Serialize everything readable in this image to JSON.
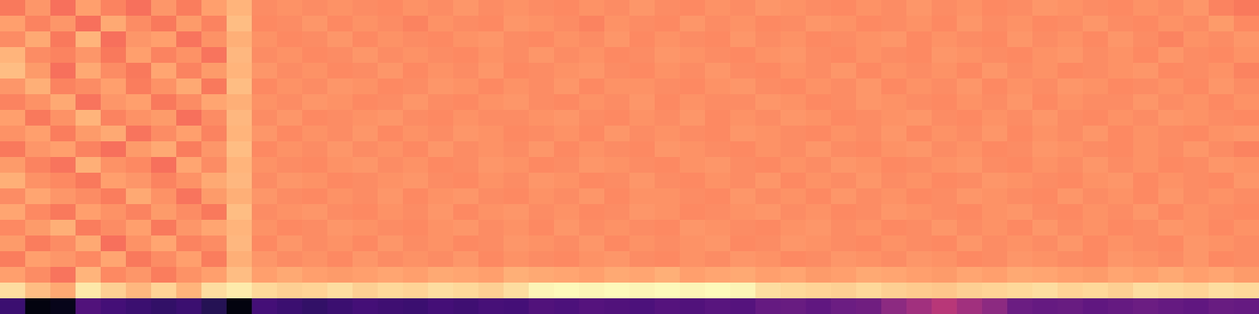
{
  "chart_data": {
    "type": "heatmap",
    "tick_labels": false,
    "zlim": [
      0,
      1
    ],
    "cells": [
      [
        0.72,
        0.78,
        0.7,
        0.8,
        0.74,
        0.7,
        0.78,
        0.73,
        0.8,
        0.84,
        0.76,
        0.77,
        0.76,
        0.77,
        0.76,
        0.75,
        0.77,
        0.76,
        0.78,
        0.76,
        0.77,
        0.76,
        0.75,
        0.77,
        0.76,
        0.78,
        0.76,
        0.75,
        0.77,
        0.76,
        0.78,
        0.77,
        0.76,
        0.75,
        0.77,
        0.76,
        0.78,
        0.76,
        0.77,
        0.75,
        0.76,
        0.78,
        0.77,
        0.76,
        0.75,
        0.77,
        0.76,
        0.78,
        0.74,
        0.72
      ],
      [
        0.8,
        0.74,
        0.78,
        0.7,
        0.82,
        0.76,
        0.72,
        0.79,
        0.74,
        0.86,
        0.75,
        0.76,
        0.78,
        0.75,
        0.77,
        0.76,
        0.74,
        0.77,
        0.76,
        0.75,
        0.78,
        0.77,
        0.76,
        0.74,
        0.77,
        0.76,
        0.75,
        0.78,
        0.76,
        0.77,
        0.75,
        0.76,
        0.78,
        0.77,
        0.75,
        0.76,
        0.77,
        0.75,
        0.78,
        0.76,
        0.77,
        0.75,
        0.76,
        0.78,
        0.76,
        0.75,
        0.77,
        0.76,
        0.79,
        0.75
      ],
      [
        0.76,
        0.82,
        0.72,
        0.84,
        0.7,
        0.78,
        0.8,
        0.71,
        0.77,
        0.83,
        0.77,
        0.75,
        0.76,
        0.78,
        0.75,
        0.77,
        0.76,
        0.75,
        0.77,
        0.78,
        0.76,
        0.75,
        0.77,
        0.76,
        0.78,
        0.75,
        0.77,
        0.76,
        0.75,
        0.78,
        0.76,
        0.77,
        0.75,
        0.76,
        0.77,
        0.78,
        0.75,
        0.77,
        0.76,
        0.75,
        0.78,
        0.76,
        0.77,
        0.75,
        0.78,
        0.76,
        0.74,
        0.77,
        0.76,
        0.78
      ],
      [
        0.84,
        0.76,
        0.74,
        0.78,
        0.72,
        0.8,
        0.74,
        0.77,
        0.71,
        0.85,
        0.76,
        0.77,
        0.75,
        0.76,
        0.78,
        0.76,
        0.77,
        0.76,
        0.75,
        0.77,
        0.76,
        0.78,
        0.76,
        0.77,
        0.75,
        0.76,
        0.78,
        0.77,
        0.76,
        0.75,
        0.77,
        0.78,
        0.76,
        0.75,
        0.77,
        0.76,
        0.75,
        0.78,
        0.77,
        0.76,
        0.75,
        0.77,
        0.78,
        0.76,
        0.77,
        0.75,
        0.78,
        0.76,
        0.75,
        0.77
      ],
      [
        0.86,
        0.79,
        0.7,
        0.82,
        0.76,
        0.72,
        0.81,
        0.74,
        0.79,
        0.84,
        0.78,
        0.76,
        0.77,
        0.75,
        0.76,
        0.78,
        0.75,
        0.77,
        0.76,
        0.78,
        0.75,
        0.76,
        0.77,
        0.78,
        0.76,
        0.75,
        0.77,
        0.76,
        0.78,
        0.76,
        0.75,
        0.77,
        0.76,
        0.78,
        0.75,
        0.77,
        0.76,
        0.77,
        0.75,
        0.78,
        0.76,
        0.77,
        0.75,
        0.76,
        0.77,
        0.78,
        0.75,
        0.76,
        0.77,
        0.74
      ],
      [
        0.78,
        0.83,
        0.74,
        0.76,
        0.8,
        0.73,
        0.77,
        0.82,
        0.72,
        0.86,
        0.75,
        0.77,
        0.76,
        0.78,
        0.77,
        0.75,
        0.76,
        0.78,
        0.77,
        0.75,
        0.77,
        0.76,
        0.78,
        0.75,
        0.77,
        0.77,
        0.76,
        0.75,
        0.77,
        0.78,
        0.76,
        0.75,
        0.77,
        0.76,
        0.78,
        0.75,
        0.77,
        0.76,
        0.78,
        0.75,
        0.77,
        0.76,
        0.78,
        0.77,
        0.75,
        0.76,
        0.77,
        0.75,
        0.78,
        0.76
      ],
      [
        0.74,
        0.77,
        0.82,
        0.71,
        0.78,
        0.8,
        0.72,
        0.76,
        0.81,
        0.83,
        0.77,
        0.76,
        0.78,
        0.77,
        0.75,
        0.76,
        0.78,
        0.76,
        0.75,
        0.77,
        0.78,
        0.76,
        0.75,
        0.77,
        0.76,
        0.78,
        0.75,
        0.77,
        0.76,
        0.76,
        0.78,
        0.77,
        0.75,
        0.76,
        0.78,
        0.77,
        0.76,
        0.75,
        0.77,
        0.76,
        0.78,
        0.75,
        0.77,
        0.76,
        0.76,
        0.78,
        0.76,
        0.77,
        0.75,
        0.77
      ],
      [
        0.8,
        0.72,
        0.77,
        0.84,
        0.74,
        0.77,
        0.79,
        0.7,
        0.76,
        0.85,
        0.76,
        0.78,
        0.75,
        0.76,
        0.77,
        0.78,
        0.76,
        0.75,
        0.77,
        0.76,
        0.76,
        0.77,
        0.78,
        0.76,
        0.75,
        0.77,
        0.76,
        0.78,
        0.75,
        0.77,
        0.76,
        0.78,
        0.77,
        0.75,
        0.76,
        0.77,
        0.78,
        0.76,
        0.75,
        0.77,
        0.76,
        0.78,
        0.76,
        0.75,
        0.77,
        0.76,
        0.78,
        0.77,
        0.76,
        0.75
      ],
      [
        0.77,
        0.8,
        0.73,
        0.79,
        0.82,
        0.71,
        0.76,
        0.8,
        0.74,
        0.84,
        0.78,
        0.75,
        0.77,
        0.76,
        0.78,
        0.75,
        0.77,
        0.76,
        0.78,
        0.77,
        0.75,
        0.76,
        0.77,
        0.75,
        0.78,
        0.76,
        0.77,
        0.76,
        0.75,
        0.78,
        0.77,
        0.76,
        0.75,
        0.77,
        0.76,
        0.78,
        0.75,
        0.77,
        0.76,
        0.78,
        0.75,
        0.77,
        0.76,
        0.78,
        0.75,
        0.77,
        0.76,
        0.75,
        0.77,
        0.78
      ],
      [
        0.72,
        0.78,
        0.8,
        0.74,
        0.7,
        0.79,
        0.82,
        0.73,
        0.78,
        0.86,
        0.75,
        0.77,
        0.76,
        0.78,
        0.76,
        0.77,
        0.75,
        0.78,
        0.76,
        0.77,
        0.76,
        0.78,
        0.75,
        0.77,
        0.76,
        0.75,
        0.78,
        0.77,
        0.76,
        0.75,
        0.77,
        0.76,
        0.78,
        0.76,
        0.75,
        0.77,
        0.78,
        0.76,
        0.77,
        0.75,
        0.76,
        0.78,
        0.77,
        0.76,
        0.75,
        0.77,
        0.76,
        0.78,
        0.76,
        0.74
      ],
      [
        0.79,
        0.74,
        0.71,
        0.83,
        0.77,
        0.75,
        0.7,
        0.81,
        0.76,
        0.84,
        0.77,
        0.76,
        0.75,
        0.77,
        0.78,
        0.76,
        0.77,
        0.75,
        0.76,
        0.78,
        0.77,
        0.75,
        0.76,
        0.78,
        0.77,
        0.76,
        0.75,
        0.77,
        0.78,
        0.76,
        0.75,
        0.77,
        0.76,
        0.78,
        0.77,
        0.75,
        0.76,
        0.77,
        0.78,
        0.76,
        0.75,
        0.77,
        0.76,
        0.78,
        0.76,
        0.77,
        0.75,
        0.76,
        0.78,
        0.77
      ],
      [
        0.83,
        0.77,
        0.75,
        0.72,
        0.8,
        0.78,
        0.74,
        0.77,
        0.82,
        0.85,
        0.76,
        0.78,
        0.77,
        0.75,
        0.76,
        0.77,
        0.78,
        0.76,
        0.75,
        0.77,
        0.76,
        0.78,
        0.77,
        0.75,
        0.76,
        0.78,
        0.76,
        0.75,
        0.77,
        0.76,
        0.78,
        0.75,
        0.77,
        0.76,
        0.78,
        0.76,
        0.77,
        0.75,
        0.76,
        0.78,
        0.77,
        0.76,
        0.75,
        0.77,
        0.78,
        0.75,
        0.77,
        0.76,
        0.75,
        0.78
      ],
      [
        0.76,
        0.81,
        0.78,
        0.76,
        0.73,
        0.82,
        0.77,
        0.71,
        0.79,
        0.83,
        0.78,
        0.76,
        0.75,
        0.77,
        0.76,
        0.78,
        0.75,
        0.77,
        0.78,
        0.76,
        0.75,
        0.77,
        0.76,
        0.78,
        0.75,
        0.77,
        0.77,
        0.76,
        0.75,
        0.78,
        0.76,
        0.77,
        0.75,
        0.78,
        0.76,
        0.77,
        0.75,
        0.76,
        0.78,
        0.77,
        0.76,
        0.75,
        0.78,
        0.76,
        0.77,
        0.75,
        0.78,
        0.76,
        0.77,
        0.76
      ],
      [
        0.81,
        0.75,
        0.72,
        0.8,
        0.77,
        0.74,
        0.79,
        0.76,
        0.72,
        0.86,
        0.76,
        0.77,
        0.78,
        0.76,
        0.75,
        0.77,
        0.76,
        0.78,
        0.75,
        0.77,
        0.78,
        0.76,
        0.77,
        0.75,
        0.76,
        0.78,
        0.77,
        0.75,
        0.76,
        0.77,
        0.78,
        0.76,
        0.77,
        0.75,
        0.76,
        0.78,
        0.77,
        0.76,
        0.75,
        0.77,
        0.78,
        0.76,
        0.75,
        0.77,
        0.76,
        0.78,
        0.75,
        0.77,
        0.76,
        0.75
      ],
      [
        0.75,
        0.79,
        0.83,
        0.73,
        0.76,
        0.8,
        0.72,
        0.78,
        0.81,
        0.84,
        0.77,
        0.75,
        0.76,
        0.78,
        0.77,
        0.76,
        0.75,
        0.77,
        0.78,
        0.76,
        0.77,
        0.75,
        0.78,
        0.76,
        0.77,
        0.76,
        0.75,
        0.78,
        0.77,
        0.76,
        0.75,
        0.77,
        0.78,
        0.76,
        0.77,
        0.75,
        0.76,
        0.78,
        0.76,
        0.77,
        0.75,
        0.78,
        0.76,
        0.77,
        0.75,
        0.76,
        0.78,
        0.77,
        0.75,
        0.77
      ],
      [
        0.79,
        0.73,
        0.76,
        0.82,
        0.7,
        0.77,
        0.81,
        0.74,
        0.76,
        0.85,
        0.75,
        0.78,
        0.76,
        0.77,
        0.75,
        0.78,
        0.76,
        0.77,
        0.75,
        0.76,
        0.78,
        0.77,
        0.76,
        0.78,
        0.75,
        0.77,
        0.76,
        0.77,
        0.78,
        0.75,
        0.76,
        0.78,
        0.77,
        0.76,
        0.75,
        0.77,
        0.76,
        0.75,
        0.78,
        0.76,
        0.77,
        0.76,
        0.78,
        0.75,
        0.77,
        0.76,
        0.75,
        0.78,
        0.77,
        0.76
      ],
      [
        0.73,
        0.8,
        0.78,
        0.75,
        0.81,
        0.72,
        0.76,
        0.8,
        0.73,
        0.83,
        0.78,
        0.76,
        0.77,
        0.75,
        0.78,
        0.76,
        0.77,
        0.76,
        0.78,
        0.75,
        0.77,
        0.76,
        0.75,
        0.77,
        0.78,
        0.76,
        0.75,
        0.77,
        0.76,
        0.78,
        0.77,
        0.75,
        0.76,
        0.78,
        0.77,
        0.76,
        0.78,
        0.77,
        0.75,
        0.76,
        0.78,
        0.77,
        0.76,
        0.75,
        0.78,
        0.77,
        0.76,
        0.78,
        0.75,
        0.76
      ],
      [
        0.8,
        0.76,
        0.71,
        0.84,
        0.75,
        0.78,
        0.73,
        0.77,
        0.8,
        0.86,
        0.8,
        0.82,
        0.8,
        0.79,
        0.8,
        0.81,
        0.8,
        0.82,
        0.81,
        0.8,
        0.83,
        0.82,
        0.81,
        0.8,
        0.82,
        0.81,
        0.83,
        0.8,
        0.81,
        0.82,
        0.8,
        0.81,
        0.79,
        0.8,
        0.82,
        0.81,
        0.8,
        0.79,
        0.81,
        0.8,
        0.82,
        0.81,
        0.8,
        0.79,
        0.81,
        0.8,
        0.82,
        0.8,
        0.81,
        0.79
      ],
      [
        0.93,
        0.86,
        0.82,
        0.95,
        0.9,
        0.85,
        0.91,
        0.84,
        0.93,
        0.96,
        0.92,
        0.9,
        0.91,
        0.93,
        0.9,
        0.92,
        0.91,
        0.93,
        0.92,
        0.9,
        0.93,
        0.98,
        0.99,
        0.98,
        0.99,
        0.98,
        0.99,
        0.98,
        0.99,
        0.98,
        0.93,
        0.92,
        0.91,
        0.9,
        0.92,
        0.9,
        0.89,
        0.88,
        0.9,
        0.91,
        0.92,
        0.93,
        0.91,
        0.92,
        0.9,
        0.93,
        0.92,
        0.91,
        0.93,
        0.92
      ],
      [
        0.2,
        0.03,
        0.05,
        0.25,
        0.22,
        0.2,
        0.18,
        0.2,
        0.15,
        0.03,
        0.22,
        0.2,
        0.18,
        0.2,
        0.22,
        0.21,
        0.2,
        0.22,
        0.21,
        0.23,
        0.22,
        0.25,
        0.24,
        0.26,
        0.25,
        0.24,
        0.26,
        0.25,
        0.27,
        0.26,
        0.3,
        0.31,
        0.29,
        0.32,
        0.33,
        0.4,
        0.45,
        0.5,
        0.45,
        0.4,
        0.32,
        0.3,
        0.31,
        0.29,
        0.3,
        0.32,
        0.3,
        0.29,
        0.31,
        0.3
      ]
    ]
  }
}
